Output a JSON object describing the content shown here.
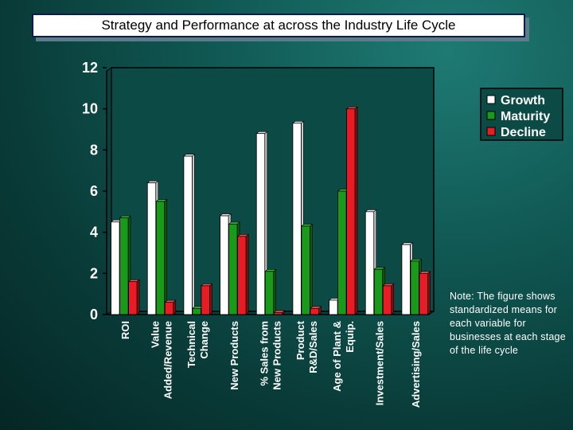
{
  "slide": {
    "title": "Strategy and Performance at across the Industry Life Cycle",
    "note": "Note: The figure shows standardized means for each variable for businesses at each stage of the life cycle"
  },
  "colors": {
    "background": "#0d4f4b",
    "plot_bg": "#0c4a46",
    "axis": "#000000"
  },
  "chart_data": {
    "type": "bar",
    "title": "Strategy and Performance at across the Industry Life Cycle",
    "xlabel": "",
    "ylabel": "",
    "ylim": [
      0,
      12
    ],
    "yticks": [
      0,
      2,
      4,
      6,
      8,
      10,
      12
    ],
    "legend_position": "right",
    "categories": [
      [
        "ROI"
      ],
      [
        "Value",
        "Added/Revenue"
      ],
      [
        "Technical",
        "Change"
      ],
      [
        "New Products"
      ],
      [
        "% Sales from",
        "New Products"
      ],
      [
        "Product",
        "R&D/Sales"
      ],
      [
        "Age of Plant &",
        "Equip."
      ],
      [
        "Investment/Sales"
      ],
      [
        "Advertising/Sales"
      ]
    ],
    "series": [
      {
        "name": "Growth",
        "color": "#ffffff",
        "values": [
          4.5,
          6.4,
          7.7,
          4.8,
          8.8,
          9.3,
          0.7,
          5.0,
          3.4
        ]
      },
      {
        "name": "Maturity",
        "color": "#1a9a1a",
        "values": [
          4.7,
          5.5,
          0.3,
          4.4,
          2.1,
          4.3,
          6.0,
          2.2,
          2.6
        ]
      },
      {
        "name": "Decline",
        "color": "#e81c24",
        "values": [
          1.6,
          0.6,
          1.4,
          3.8,
          0.1,
          0.3,
          10.0,
          1.4,
          2.0
        ]
      }
    ]
  }
}
